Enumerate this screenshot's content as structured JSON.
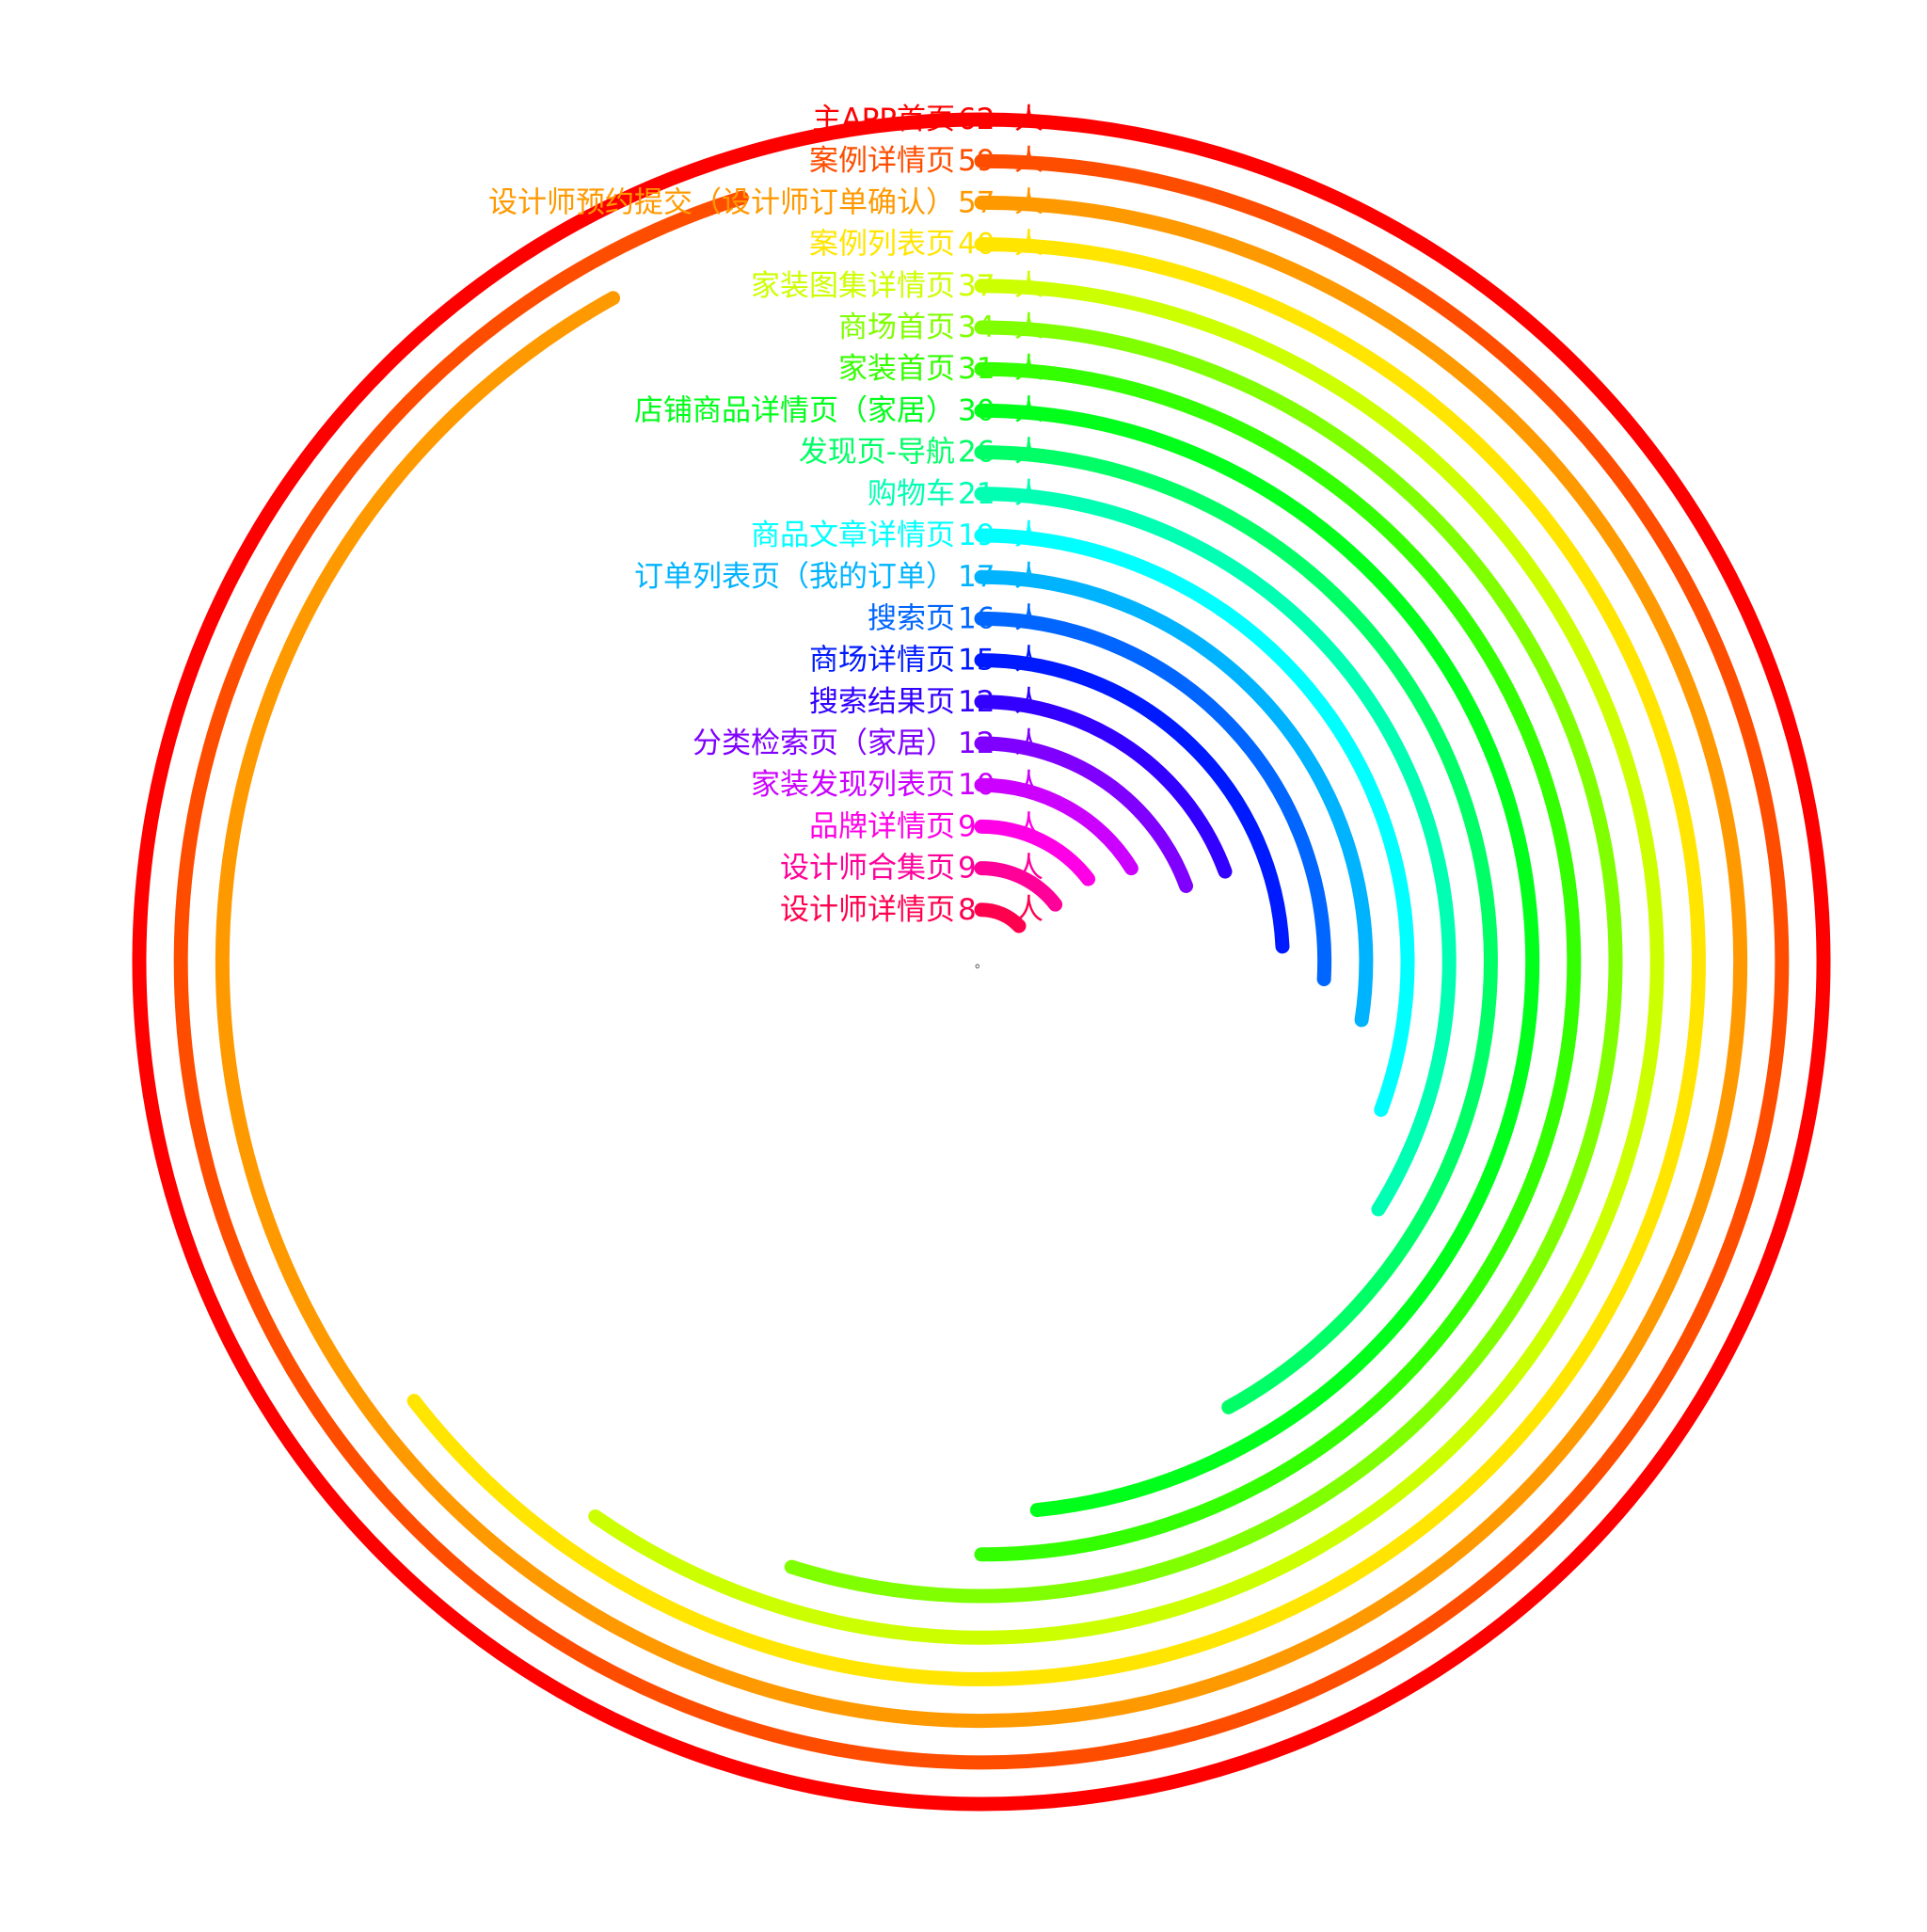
{
  "chart_data": {
    "type": "radial-bar",
    "unit_suffix": "人",
    "max_value": 62,
    "start_angle_deg": 0,
    "direction": "clockwise",
    "grid": false,
    "legend": "none",
    "center_mark": "。",
    "series": [
      {
        "name": "主APP首页",
        "value": 62,
        "value_label": "62",
        "color": "#FF0000"
      },
      {
        "name": "案例详情页",
        "value": 59,
        "value_label": "59",
        "color": "#FF4D00"
      },
      {
        "name": "设计师预约提交（设计师订单确认）",
        "value": 57,
        "value_label": "57",
        "color": "#FF9900"
      },
      {
        "name": "案例列表页",
        "value": 40,
        "value_label": "40",
        "color": "#FFE500"
      },
      {
        "name": "家装图集详情页",
        "value": 37,
        "value_label": "37",
        "color": "#CCFF00"
      },
      {
        "name": "商场首页",
        "value": 34,
        "value_label": "34",
        "color": "#80FF00"
      },
      {
        "name": "家装首页",
        "value": 31,
        "value_label": "31",
        "color": "#33FF00"
      },
      {
        "name": "店铺商品详情页（家居）",
        "value": 30,
        "value_label": "30",
        "color": "#00FF1A"
      },
      {
        "name": "发现页-导航",
        "value": 26,
        "value_label": "26",
        "color": "#00FF66"
      },
      {
        "name": "购物车",
        "value": 21,
        "value_label": "21",
        "color": "#00FFB3"
      },
      {
        "name": "商品文章详情页",
        "value": 19,
        "value_label": "19",
        "color": "#00FFFF"
      },
      {
        "name": "订单列表页（我的订单）",
        "value": 17,
        "value_label": "17",
        "color": "#00B3FF"
      },
      {
        "name": "搜索页",
        "value": 16,
        "value_label": "16",
        "color": "#0066FF"
      },
      {
        "name": "商场详情页",
        "value": 15,
        "value_label": "15",
        "color": "#001AFF"
      },
      {
        "name": "搜索结果页",
        "value": 12,
        "value_label": "12",
        "color": "#3300FF"
      },
      {
        "name": "分类检索页（家居）",
        "value": 12,
        "value_label": "12",
        "color": "#8000FF"
      },
      {
        "name": "家装发现列表页",
        "value": 10,
        "value_label": "10",
        "color": "#CC00FF"
      },
      {
        "name": "品牌详情页",
        "value": 9,
        "value_label": " 9",
        "color": "#FF00E6"
      },
      {
        "name": "设计师合集页",
        "value": 9,
        "value_label": " 9",
        "color": "#FF0099"
      },
      {
        "name": "设计师详情页",
        "value": 8,
        "value_label": " 8",
        "color": "#FF004D"
      }
    ]
  }
}
